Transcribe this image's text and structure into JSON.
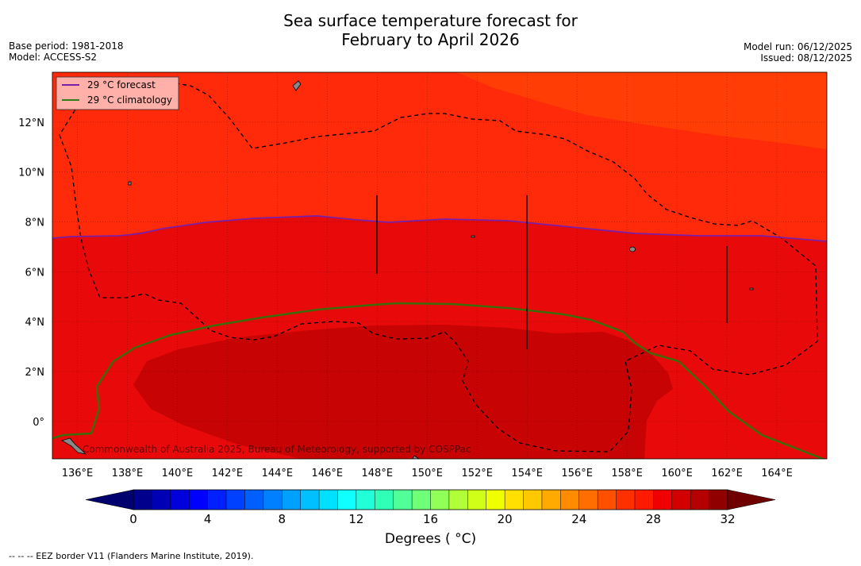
{
  "title": {
    "line1": "Sea surface temperature forecast for",
    "line2": "February to April 2026"
  },
  "meta_left": {
    "base_period": "Base period: 1981-2018",
    "model": "Model: ACCESS-S2"
  },
  "meta_right": {
    "model_run": "Model run: 06/12/2025",
    "issued": "Issued: 08/12/2025"
  },
  "legend": {
    "forecast_label": "29 °C  forecast",
    "climatology_label": "29 °C  climatology",
    "forecast_color": "#7a1fa8",
    "climatology_color": "#2e7d16"
  },
  "map": {
    "lon_range": [
      135,
      166
    ],
    "lat_range": [
      -1.5,
      14
    ],
    "lon_ticks": [
      "136°E",
      "138°E",
      "140°E",
      "142°E",
      "144°E",
      "146°E",
      "148°E",
      "150°E",
      "152°E",
      "154°E",
      "156°E",
      "158°E",
      "160°E",
      "162°E",
      "164°E"
    ],
    "lat_ticks": [
      "0°",
      "2°N",
      "4°N",
      "6°N",
      "8°N",
      "10°N",
      "12°N"
    ],
    "watermark": "Commonwealth of Australia 2025, Bureau of Meteorology, supported by COSPPac"
  },
  "colorbar": {
    "tick_labels": [
      "0",
      "4",
      "8",
      "12",
      "16",
      "20",
      "24",
      "28",
      "32"
    ],
    "label": "Degrees ( °C)"
  },
  "footnote": "--  --  -- EEZ border V11 (Flanders Marine Institute, 2019)."
}
